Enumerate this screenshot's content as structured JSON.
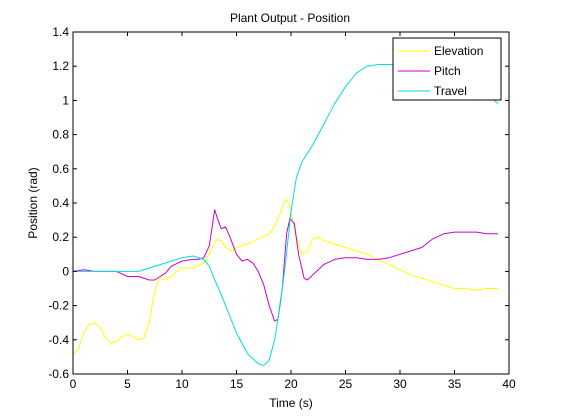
{
  "chart_data": {
    "type": "line",
    "title": "Plant Output - Position",
    "xlabel": "Time (s)",
    "ylabel": "Position (rad)",
    "xlim": [
      0,
      40
    ],
    "ylim": [
      -0.6,
      1.4
    ],
    "xticks": [
      0,
      5,
      10,
      15,
      20,
      25,
      30,
      35,
      40
    ],
    "yticks": [
      -0.6,
      -0.4,
      -0.2,
      0,
      0.2,
      0.4,
      0.6,
      0.8,
      1,
      1.2,
      1.4
    ],
    "xtick_labels": [
      "0",
      "5",
      "10",
      "15",
      "20",
      "25",
      "30",
      "35",
      "40"
    ],
    "ytick_labels": [
      "-0.6",
      "-0.4",
      "-0.2",
      "0",
      "0.2",
      "0.4",
      "0.6",
      "0.8",
      "1",
      "1.2",
      "1.4"
    ],
    "grid": false,
    "legend_position": "top-right",
    "series": [
      {
        "name": "Elevation",
        "color": "#ffff00",
        "points": [
          [
            0,
            -0.49
          ],
          [
            0.5,
            -0.45
          ],
          [
            1,
            -0.36
          ],
          [
            1.5,
            -0.31
          ],
          [
            2,
            -0.3
          ],
          [
            2.5,
            -0.33
          ],
          [
            3,
            -0.39
          ],
          [
            3.5,
            -0.42
          ],
          [
            4,
            -0.41
          ],
          [
            4.5,
            -0.38
          ],
          [
            5,
            -0.37
          ],
          [
            5.5,
            -0.38
          ],
          [
            6,
            -0.4
          ],
          [
            6.5,
            -0.39
          ],
          [
            7,
            -0.3
          ],
          [
            7.3,
            -0.18
          ],
          [
            7.7,
            -0.07
          ],
          [
            8,
            -0.04
          ],
          [
            8.5,
            -0.05
          ],
          [
            9,
            -0.03
          ],
          [
            9.5,
            0.0
          ],
          [
            10,
            0.02
          ],
          [
            11,
            0.02
          ],
          [
            12,
            0.05
          ],
          [
            12.5,
            0.1
          ],
          [
            13,
            0.17
          ],
          [
            13.3,
            0.19
          ],
          [
            13.7,
            0.17
          ],
          [
            14,
            0.14
          ],
          [
            14.5,
            0.12
          ],
          [
            15,
            0.14
          ],
          [
            16,
            0.16
          ],
          [
            17,
            0.19
          ],
          [
            18,
            0.22
          ],
          [
            18.5,
            0.26
          ],
          [
            19,
            0.34
          ],
          [
            19.5,
            0.42
          ],
          [
            19.8,
            0.4
          ],
          [
            20.2,
            0.28
          ],
          [
            20.6,
            0.18
          ],
          [
            21,
            0.1
          ],
          [
            21.5,
            0.12
          ],
          [
            22,
            0.19
          ],
          [
            22.5,
            0.2
          ],
          [
            23,
            0.18
          ],
          [
            24,
            0.16
          ],
          [
            25,
            0.14
          ],
          [
            26,
            0.12
          ],
          [
            27,
            0.1
          ],
          [
            28,
            0.07
          ],
          [
            29,
            0.04
          ],
          [
            30,
            0.01
          ],
          [
            31,
            -0.02
          ],
          [
            32,
            -0.04
          ],
          [
            33,
            -0.06
          ],
          [
            34,
            -0.08
          ],
          [
            35,
            -0.1
          ],
          [
            36,
            -0.1
          ],
          [
            37,
            -0.11
          ],
          [
            38,
            -0.1
          ],
          [
            39,
            -0.1
          ]
        ]
      },
      {
        "name": "Pitch",
        "color": "#cc00cc",
        "points": [
          [
            0,
            0.0
          ],
          [
            1,
            0.01
          ],
          [
            2,
            0.0
          ],
          [
            3,
            0.0
          ],
          [
            4,
            0.0
          ],
          [
            5,
            -0.03
          ],
          [
            6,
            -0.03
          ],
          [
            7,
            -0.05
          ],
          [
            7.5,
            -0.05
          ],
          [
            8,
            -0.03
          ],
          [
            8.5,
            -0.01
          ],
          [
            9,
            0.03
          ],
          [
            10,
            0.06
          ],
          [
            11,
            0.07
          ],
          [
            11.5,
            0.07
          ],
          [
            12,
            0.08
          ],
          [
            12.5,
            0.15
          ],
          [
            13,
            0.36
          ],
          [
            13.3,
            0.3
          ],
          [
            13.6,
            0.25
          ],
          [
            14,
            0.26
          ],
          [
            14.4,
            0.2
          ],
          [
            15,
            0.1
          ],
          [
            15.5,
            0.06
          ],
          [
            16,
            0.07
          ],
          [
            16.5,
            0.05
          ],
          [
            17,
            0.0
          ],
          [
            17.5,
            -0.08
          ],
          [
            18,
            -0.2
          ],
          [
            18.5,
            -0.29
          ],
          [
            18.8,
            -0.28
          ],
          [
            19.2,
            -0.1
          ],
          [
            19.6,
            0.22
          ],
          [
            19.9,
            0.31
          ],
          [
            20.3,
            0.28
          ],
          [
            20.7,
            0.1
          ],
          [
            21.2,
            -0.04
          ],
          [
            21.5,
            -0.05
          ],
          [
            22,
            -0.02
          ],
          [
            22.5,
            0.01
          ],
          [
            23,
            0.04
          ],
          [
            24,
            0.07
          ],
          [
            25,
            0.08
          ],
          [
            26,
            0.08
          ],
          [
            27,
            0.07
          ],
          [
            28,
            0.07
          ],
          [
            29,
            0.08
          ],
          [
            30,
            0.1
          ],
          [
            31,
            0.12
          ],
          [
            32,
            0.14
          ],
          [
            33,
            0.19
          ],
          [
            34,
            0.22
          ],
          [
            35,
            0.23
          ],
          [
            36,
            0.23
          ],
          [
            37,
            0.23
          ],
          [
            38,
            0.22
          ],
          [
            39,
            0.22
          ]
        ]
      },
      {
        "name": "Travel",
        "color": "#00dddd",
        "points": [
          [
            0,
            0.0
          ],
          [
            1,
            0.0
          ],
          [
            2,
            0.0
          ],
          [
            3,
            0.0
          ],
          [
            4,
            0.0
          ],
          [
            5,
            0.0
          ],
          [
            6,
            0.0
          ],
          [
            7,
            0.02
          ],
          [
            8,
            0.04
          ],
          [
            9,
            0.06
          ],
          [
            10,
            0.08
          ],
          [
            11,
            0.09
          ],
          [
            12,
            0.07
          ],
          [
            12.5,
            0.03
          ],
          [
            13,
            -0.05
          ],
          [
            13.5,
            -0.12
          ],
          [
            14,
            -0.2
          ],
          [
            15,
            -0.36
          ],
          [
            16,
            -0.48
          ],
          [
            17,
            -0.54
          ],
          [
            17.5,
            -0.55
          ],
          [
            18,
            -0.52
          ],
          [
            18.5,
            -0.4
          ],
          [
            19,
            -0.2
          ],
          [
            19.5,
            0.05
          ],
          [
            20,
            0.35
          ],
          [
            20.5,
            0.55
          ],
          [
            21,
            0.64
          ],
          [
            22,
            0.74
          ],
          [
            23,
            0.86
          ],
          [
            24,
            0.98
          ],
          [
            25,
            1.08
          ],
          [
            26,
            1.16
          ],
          [
            27,
            1.2
          ],
          [
            28,
            1.21
          ],
          [
            29,
            1.21
          ],
          [
            30,
            1.21
          ],
          [
            31,
            1.21
          ],
          [
            32,
            1.21
          ],
          [
            33,
            1.2
          ],
          [
            34,
            1.19
          ],
          [
            35,
            1.17
          ],
          [
            36,
            1.14
          ],
          [
            37,
            1.1
          ],
          [
            38,
            1.04
          ],
          [
            39,
            0.98
          ]
        ]
      }
    ]
  }
}
